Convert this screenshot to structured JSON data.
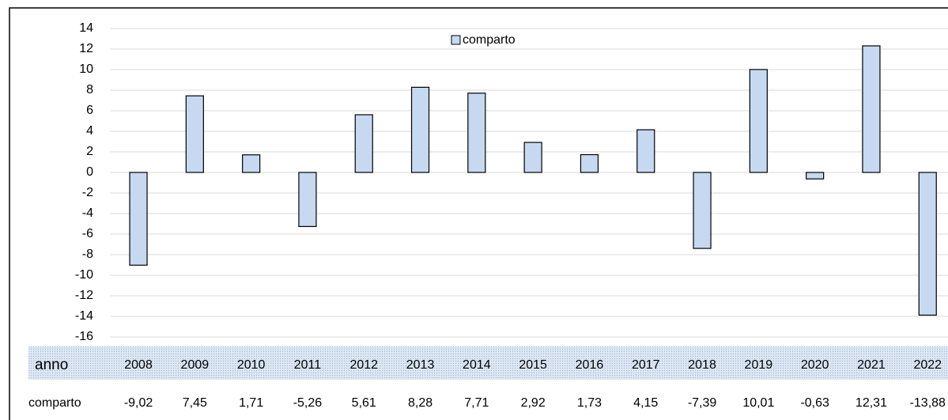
{
  "chart_data": {
    "type": "bar",
    "x_label": "anno",
    "categories": [
      "2008",
      "2009",
      "2010",
      "2011",
      "2012",
      "2013",
      "2014",
      "2015",
      "2016",
      "2017",
      "2018",
      "2019",
      "2020",
      "2021",
      "2022"
    ],
    "series": [
      {
        "name": "comparto",
        "color": "#c6d9f1",
        "values": [
          -9.02,
          7.45,
          1.71,
          -5.26,
          5.61,
          8.28,
          7.71,
          2.92,
          1.73,
          4.15,
          -7.39,
          10.01,
          -0.63,
          12.31,
          -13.88
        ],
        "value_labels": [
          "-9,02",
          "7,45",
          "1,71",
          "-5,26",
          "5,61",
          "8,28",
          "7,71",
          "2,92",
          "1,73",
          "4,15",
          "-7,39",
          "10,01",
          "-0,63",
          "12,31",
          "-13,88"
        ]
      }
    ],
    "ylim": [
      -16,
      14
    ],
    "yticks": [
      -16,
      -14,
      -12,
      -10,
      -8,
      -6,
      -4,
      -2,
      0,
      2,
      4,
      6,
      8,
      10,
      12,
      14
    ],
    "grid": true,
    "legend": "top"
  }
}
